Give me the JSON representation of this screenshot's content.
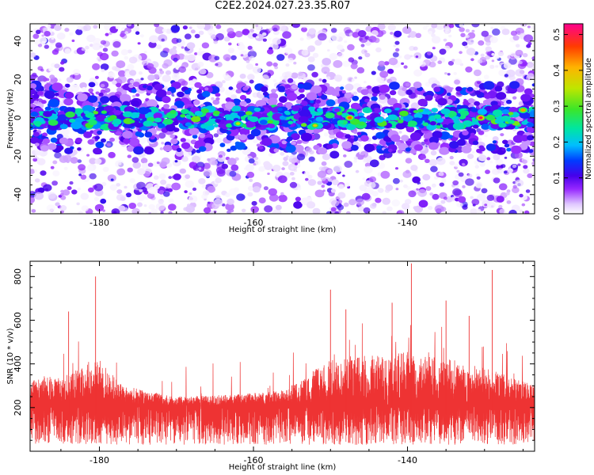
{
  "figure": {
    "title": "C2E2.2024.027.23.35.R07"
  },
  "chart_data": [
    {
      "type": "heatmap",
      "title": "C2E2.2024.027.23.35.R07",
      "xlabel": "Height of straight line (km)",
      "ylabel": "Frequency (Hz)",
      "xlim": [
        -189,
        -123.5
      ],
      "ylim": [
        -50,
        49
      ],
      "x_ticks": [
        "-180",
        "-160",
        "-140"
      ],
      "y_ticks": [
        "40",
        "20",
        "0",
        "-20",
        "-40"
      ],
      "grid": false,
      "band_center_hz": 0,
      "band_halfwidth_hz": 5,
      "colorbar": {
        "label": "Normalized spectral amplitude",
        "range": [
          0.0,
          0.53
        ],
        "ticks": [
          "0.0",
          "0.1",
          "0.2",
          "0.3",
          "0.4",
          "0.5"
        ]
      },
      "peaks": [
        {
          "x": -130.5,
          "y": 0,
          "value": 0.5
        },
        {
          "x": -147.5,
          "y": 0,
          "value": 0.45
        },
        {
          "x": -125,
          "y": 4,
          "value": 0.42
        },
        {
          "x": -152,
          "y": -4,
          "value": 0.38
        },
        {
          "x": -162,
          "y": -3,
          "value": 0.35
        }
      ]
    },
    {
      "type": "line",
      "title": "",
      "xlabel": "Height of straight line (km)",
      "ylabel": "SNR (10 * v/v)",
      "xlim": [
        -189,
        -123.5
      ],
      "ylim": [
        0,
        870
      ],
      "x_ticks": [
        "-180",
        "-160",
        "-140"
      ],
      "y_ticks": [
        "800",
        "600",
        "400",
        "200"
      ],
      "grid": false,
      "series": [
        {
          "color": "#ee3333",
          "baseline": 210,
          "envelope": [
            {
              "x": -189,
              "y": 330
            },
            {
              "x": -184,
              "y": 360
            },
            {
              "x": -180,
              "y": 420
            },
            {
              "x": -177,
              "y": 300
            },
            {
              "x": -170,
              "y": 250
            },
            {
              "x": -162,
              "y": 260
            },
            {
              "x": -156,
              "y": 280
            },
            {
              "x": -150,
              "y": 420
            },
            {
              "x": -145,
              "y": 440
            },
            {
              "x": -140,
              "y": 460
            },
            {
              "x": -134,
              "y": 420
            },
            {
              "x": -128,
              "y": 360
            },
            {
              "x": -123.5,
              "y": 300
            }
          ],
          "spikes": [
            {
              "x": -139.5,
              "y": 860
            },
            {
              "x": -129,
              "y": 830
            },
            {
              "x": -180.5,
              "y": 800
            },
            {
              "x": -150,
              "y": 740
            },
            {
              "x": -184,
              "y": 640
            },
            {
              "x": -135,
              "y": 690
            },
            {
              "x": -148,
              "y": 650
            },
            {
              "x": -142,
              "y": 680
            },
            {
              "x": -132,
              "y": 620
            }
          ]
        }
      ]
    }
  ]
}
